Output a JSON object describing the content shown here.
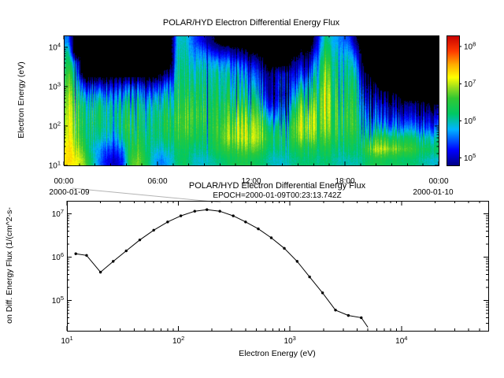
{
  "figure": {
    "bg": "#ffffff"
  },
  "spectrogram": {
    "title": "POLAR/HYD  Electron Differential Energy Flux",
    "ylabel": "Electron Energy (eV)",
    "yticks_exp": [
      1,
      2,
      3,
      4
    ],
    "xticks": [
      "00:00",
      "06:00",
      "12:00",
      "18:00",
      "00:00"
    ],
    "date_left": "2000-01-09",
    "date_right": "2000-01-10"
  },
  "colorbar": {
    "ticks_exp": [
      8,
      7,
      6,
      5
    ],
    "log_range": [
      4.8,
      8.3
    ]
  },
  "colormap": {
    "black_below": 4.55,
    "stops": [
      [
        0.0,
        "#000082"
      ],
      [
        0.12,
        "#0000ff"
      ],
      [
        0.28,
        "#00b4ff"
      ],
      [
        0.4,
        "#00c864"
      ],
      [
        0.52,
        "#32c832"
      ],
      [
        0.6,
        "#96dc1e"
      ],
      [
        0.68,
        "#ffff00"
      ],
      [
        0.78,
        "#ffaa00"
      ],
      [
        0.88,
        "#ff3c00"
      ],
      [
        1.0,
        "#c80000"
      ]
    ]
  },
  "lineplot": {
    "title": "POLAR/HYD  Electron Differential Energy Flux",
    "subtitle": "EPOCH=2000-01-09T00:23:13.742Z",
    "xlabel": "Electron Energy (eV)",
    "ylabel": "on Diff. Energy Flux (1/(cm^2-s-",
    "xticks_exp": [
      1,
      2,
      3,
      4
    ],
    "yticks_exp": [
      5,
      6,
      7
    ]
  },
  "chart_data": [
    {
      "type": "heatmap",
      "title": "POLAR/HYD  Electron Differential Energy Flux",
      "ylabel": "Electron Energy (eV)",
      "x_time_range": [
        "2000-01-09 00:00",
        "2000-01-10 00:00"
      ],
      "xticks": [
        "00:00",
        "06:00",
        "12:00",
        "18:00",
        "00:00"
      ],
      "ylim": [
        10,
        20000
      ],
      "colorbar_ticks": [
        100000.0,
        1000000.0,
        10000000.0,
        100000000.0
      ],
      "time_bins": 48,
      "energy_bins": 12,
      "values_note": "log10 of differential energy flux; values[time_col][energy_row], row 0 = lowest energy (10 eV), 4.0 = below scale (black)",
      "values": [
        [
          7.3,
          7.2,
          7.0,
          6.9,
          6.8,
          6.7,
          6.6,
          6.5,
          6.4,
          6.2,
          6.0,
          5.6
        ],
        [
          7.2,
          7.1,
          6.9,
          6.8,
          6.7,
          6.6,
          6.4,
          6.2,
          5.9,
          5.4,
          4.0,
          4.0
        ],
        [
          6.9,
          6.6,
          6.4,
          6.3,
          6.3,
          6.2,
          5.8,
          5.2,
          4.0,
          4.0,
          4.0,
          4.0
        ],
        [
          6.2,
          6.0,
          6.2,
          6.3,
          6.3,
          6.1,
          5.8,
          5.0,
          4.0,
          4.0,
          4.0,
          4.0
        ],
        [
          5.6,
          5.7,
          6.0,
          6.2,
          6.3,
          6.2,
          5.8,
          5.1,
          4.0,
          4.0,
          4.0,
          4.0
        ],
        [
          5.2,
          5.5,
          6.0,
          6.2,
          6.2,
          6.1,
          5.7,
          5.0,
          4.0,
          4.0,
          4.0,
          4.0
        ],
        [
          5.0,
          5.3,
          5.6,
          5.8,
          5.9,
          5.8,
          5.4,
          4.9,
          4.0,
          4.0,
          4.0,
          4.0
        ],
        [
          5.3,
          5.6,
          6.1,
          6.3,
          6.2,
          6.0,
          5.6,
          5.0,
          4.0,
          4.0,
          4.0,
          4.0
        ],
        [
          6.6,
          6.4,
          6.3,
          6.3,
          6.2,
          6.0,
          5.6,
          5.0,
          4.0,
          4.0,
          4.0,
          4.0
        ],
        [
          6.8,
          6.6,
          6.4,
          6.3,
          6.2,
          6.1,
          5.7,
          5.1,
          4.0,
          4.0,
          4.0,
          4.0
        ],
        [
          6.4,
          6.3,
          6.3,
          6.2,
          6.2,
          6.0,
          5.6,
          5.0,
          4.0,
          4.0,
          4.0,
          4.0
        ],
        [
          5.8,
          6.0,
          6.2,
          6.3,
          6.2,
          6.1,
          5.7,
          5.1,
          4.0,
          4.0,
          4.0,
          4.0
        ],
        [
          5.6,
          5.9,
          6.2,
          6.3,
          6.3,
          6.1,
          5.8,
          5.2,
          4.4,
          4.0,
          4.0,
          4.0
        ],
        [
          5.8,
          6.0,
          6.2,
          6.3,
          6.2,
          6.0,
          5.7,
          5.3,
          4.6,
          4.0,
          4.0,
          4.0
        ],
        [
          6.2,
          6.3,
          6.5,
          6.6,
          6.6,
          6.5,
          6.4,
          6.3,
          6.2,
          6.1,
          6.0,
          5.9
        ],
        [
          6.3,
          6.4,
          6.6,
          6.8,
          6.8,
          6.7,
          6.5,
          6.4,
          6.3,
          6.2,
          6.1,
          6.0
        ],
        [
          6.0,
          6.2,
          6.5,
          6.6,
          6.7,
          6.6,
          6.5,
          6.3,
          6.1,
          5.9,
          5.7,
          5.5
        ],
        [
          5.9,
          6.1,
          6.3,
          6.4,
          6.5,
          6.4,
          6.3,
          6.2,
          6.1,
          5.9,
          5.6,
          5.2
        ],
        [
          6.0,
          6.2,
          6.3,
          6.4,
          6.4,
          6.3,
          6.2,
          6.1,
          6.0,
          5.8,
          5.4,
          4.8
        ],
        [
          6.1,
          6.3,
          6.4,
          6.4,
          6.3,
          6.2,
          6.1,
          6.0,
          5.9,
          5.6,
          5.0,
          4.4
        ],
        [
          6.2,
          6.5,
          6.7,
          6.6,
          6.4,
          6.3,
          6.1,
          6.0,
          5.9,
          5.6,
          5.0,
          4.0
        ],
        [
          6.3,
          6.6,
          6.9,
          6.8,
          6.6,
          6.4,
          6.2,
          6.0,
          5.8,
          5.5,
          4.9,
          4.0
        ],
        [
          6.4,
          6.7,
          7.0,
          7.0,
          6.8,
          6.5,
          6.2,
          6.0,
          5.8,
          5.4,
          4.7,
          4.0
        ],
        [
          6.4,
          6.8,
          7.1,
          7.0,
          6.8,
          6.5,
          6.2,
          5.9,
          5.6,
          5.2,
          4.5,
          4.0
        ],
        [
          6.3,
          6.7,
          7.0,
          6.9,
          6.7,
          6.4,
          6.0,
          5.7,
          5.4,
          5.0,
          4.3,
          4.0
        ],
        [
          6.2,
          6.5,
          6.8,
          6.7,
          6.4,
          6.0,
          5.6,
          5.3,
          5.0,
          4.6,
          4.0,
          4.0
        ],
        [
          6.0,
          6.2,
          6.4,
          6.2,
          5.8,
          5.3,
          5.0,
          4.9,
          4.8,
          4.0,
          4.0,
          4.0
        ],
        [
          5.9,
          6.1,
          6.2,
          6.0,
          5.5,
          5.1,
          4.9,
          5.0,
          4.9,
          4.0,
          4.0,
          4.0
        ],
        [
          6.0,
          6.2,
          6.3,
          6.2,
          5.8,
          5.3,
          5.0,
          5.1,
          5.0,
          4.0,
          4.0,
          4.0
        ],
        [
          6.1,
          6.3,
          6.6,
          6.7,
          6.5,
          6.2,
          5.8,
          5.4,
          5.1,
          4.8,
          4.0,
          4.0
        ],
        [
          6.2,
          6.5,
          6.9,
          7.1,
          7.0,
          6.8,
          6.4,
          5.9,
          5.4,
          5.0,
          4.5,
          4.0
        ],
        [
          6.2,
          6.4,
          6.8,
          7.0,
          6.9,
          6.6,
          6.2,
          5.8,
          5.4,
          5.0,
          4.5,
          4.0
        ],
        [
          6.1,
          6.3,
          6.5,
          6.6,
          6.6,
          6.5,
          6.4,
          6.2,
          6.0,
          5.8,
          5.5,
          5.2
        ],
        [
          6.2,
          6.4,
          6.6,
          6.8,
          6.9,
          7.0,
          7.0,
          6.9,
          6.8,
          6.6,
          6.4,
          6.2
        ],
        [
          6.1,
          6.3,
          6.5,
          6.6,
          6.6,
          6.6,
          6.5,
          6.4,
          6.3,
          6.2,
          6.0,
          5.8
        ],
        [
          6.0,
          6.2,
          6.4,
          6.5,
          6.5,
          6.4,
          6.3,
          6.2,
          6.1,
          6.0,
          5.8,
          5.6
        ],
        [
          6.0,
          6.2,
          6.3,
          6.4,
          6.4,
          6.3,
          6.2,
          6.1,
          6.0,
          5.9,
          5.7,
          5.4
        ],
        [
          6.0,
          6.1,
          6.2,
          6.3,
          6.2,
          6.1,
          6.0,
          5.9,
          5.7,
          5.4,
          5.0,
          4.5
        ],
        [
          6.2,
          6.6,
          6.3,
          6.0,
          5.8,
          5.5,
          5.2,
          4.9,
          4.6,
          4.0,
          4.0,
          4.0
        ],
        [
          6.4,
          6.9,
          6.4,
          5.9,
          5.5,
          5.2,
          4.9,
          4.6,
          4.0,
          4.0,
          4.0,
          4.0
        ],
        [
          6.4,
          7.0,
          6.5,
          5.8,
          5.3,
          5.0,
          4.6,
          4.0,
          4.0,
          4.0,
          4.0,
          4.0
        ],
        [
          6.3,
          6.9,
          6.4,
          5.7,
          5.2,
          4.9,
          4.5,
          4.0,
          4.0,
          4.0,
          4.0,
          4.0
        ],
        [
          6.3,
          6.8,
          6.3,
          5.7,
          5.2,
          4.8,
          4.4,
          4.0,
          4.0,
          4.0,
          4.0,
          4.0
        ],
        [
          6.2,
          6.7,
          6.3,
          5.6,
          5.1,
          4.7,
          4.0,
          4.0,
          4.0,
          4.0,
          4.0,
          4.0
        ],
        [
          6.2,
          6.6,
          6.2,
          5.6,
          5.1,
          4.7,
          4.0,
          4.0,
          4.0,
          4.0,
          4.0,
          4.0
        ],
        [
          6.1,
          6.4,
          6.1,
          5.5,
          5.0,
          4.6,
          4.0,
          4.0,
          4.0,
          4.0,
          4.0,
          4.0
        ],
        [
          6.0,
          6.3,
          6.0,
          5.4,
          5.0,
          4.5,
          4.0,
          4.0,
          4.0,
          4.0,
          4.0,
          4.0
        ],
        [
          5.9,
          6.2,
          5.9,
          5.4,
          4.9,
          4.4,
          4.0,
          4.0,
          4.0,
          4.0,
          4.0,
          4.0
        ]
      ]
    },
    {
      "type": "line",
      "title": "POLAR/HYD  Electron Differential Energy Flux",
      "subtitle": "EPOCH=2000-01-09T00:23:13.742Z",
      "xlabel": "Electron Energy (eV)",
      "ylabel": "on Diff. Energy Flux (1/(cm^2-s-",
      "xlim": [
        10,
        60000
      ],
      "ylim": [
        20000,
        20000000
      ],
      "x": [
        12,
        15,
        20,
        26,
        34,
        45,
        60,
        80,
        105,
        140,
        180,
        235,
        310,
        400,
        520,
        680,
        890,
        1160,
        1500,
        1960,
        2560,
        3340,
        4360,
        5000
      ],
      "y": [
        1200000.0,
        1100000.0,
        450000.0,
        800000.0,
        1400000.0,
        2500000.0,
        4200000.0,
        6500000.0,
        9000000.0,
        11500000.0,
        12500000.0,
        11500000.0,
        9000000.0,
        6500000.0,
        4500000.0,
        2800000.0,
        1600000.0,
        800000.0,
        350000.0,
        150000.0,
        60000.0,
        45000.0,
        40000.0,
        24000.0
      ]
    }
  ]
}
